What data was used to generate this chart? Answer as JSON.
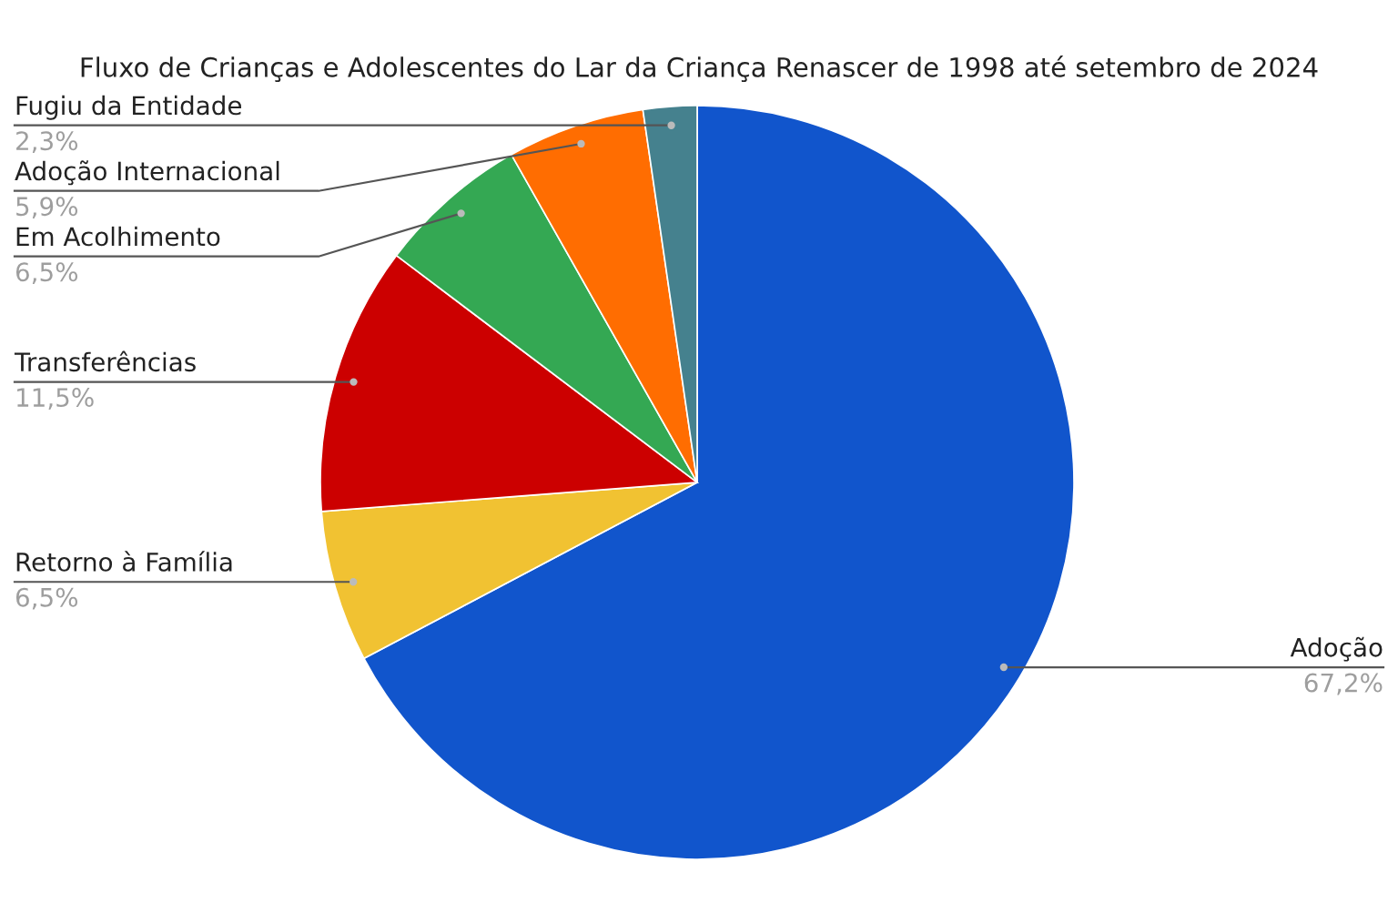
{
  "chart_data": {
    "type": "pie",
    "title": "Fluxo de Crianças e Adolescentes do Lar da Criança Renascer de 1998 até setembro de 2024",
    "categories": [
      "Adoção",
      "Retorno à Família",
      "Transferências",
      "Em Acolhimento",
      "Adoção Internacional",
      "Fugiu da Entidade"
    ],
    "values": [
      67.2,
      6.5,
      11.5,
      6.5,
      5.9,
      2.3
    ],
    "colors": [
      "#1155cc",
      "#f1c232",
      "#cc0000",
      "#34a853",
      "#ff6d01",
      "#45818e"
    ],
    "value_labels": [
      "67,2%",
      "6,5%",
      "11,5%",
      "6,5%",
      "5,9%",
      "2,3%"
    ]
  }
}
